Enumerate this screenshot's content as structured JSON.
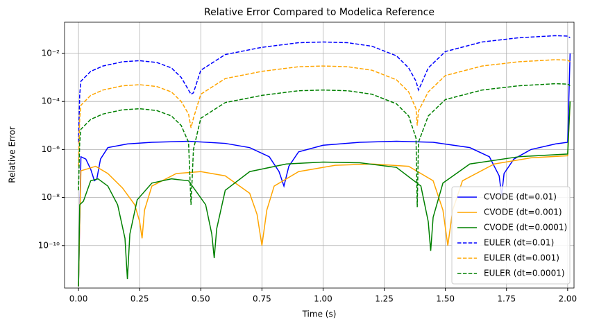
{
  "chart_data": {
    "type": "line",
    "title": "Relative Error Compared to Modelica Reference",
    "xlabel": "Time (s)",
    "ylabel": "Relative Error",
    "yscale": "log",
    "grid": true,
    "legend": "lower right",
    "xlim": [
      -0.057,
      2.026
    ],
    "ylim": [
      1.7e-12,
      0.2
    ],
    "xticks": [
      {
        "value": 0,
        "label": "0.00"
      },
      {
        "value": 0.25,
        "label": "0.25"
      },
      {
        "value": 0.5,
        "label": "0.50"
      },
      {
        "value": 0.75,
        "label": "0.75"
      },
      {
        "value": 1,
        "label": "1.00"
      },
      {
        "value": 1.25,
        "label": "1.25"
      },
      {
        "value": 1.5,
        "label": "1.50"
      },
      {
        "value": 1.75,
        "label": "1.75"
      },
      {
        "value": 2,
        "label": "2.00"
      }
    ],
    "yticks": [
      {
        "value": 1e-10,
        "label": "10⁻¹⁰"
      },
      {
        "value": 1e-08,
        "label": "10⁻⁸"
      },
      {
        "value": 1e-06,
        "label": "10⁻⁶"
      },
      {
        "value": 0.0001,
        "label": "10⁻⁴"
      },
      {
        "value": 0.01,
        "label": "10⁻²"
      }
    ],
    "series": [
      {
        "name": "CVODE (dt=0.01)",
        "color": "#0000ff",
        "dashed": false,
        "x": [
          0,
          0.005,
          0.01,
          0.03,
          0.05,
          0.065,
          0.075,
          0.09,
          0.12,
          0.2,
          0.3,
          0.45,
          0.6,
          0.7,
          0.78,
          0.82,
          0.84,
          0.86,
          0.9,
          1.0,
          1.15,
          1.3,
          1.45,
          1.6,
          1.68,
          1.72,
          1.73,
          1.74,
          1.78,
          1.85,
          1.95,
          2.0,
          2.01
        ],
        "values": [
          2e-12,
          1e-09,
          5e-07,
          4e-07,
          1.5e-07,
          5e-08,
          6e-08,
          4e-07,
          1.2e-06,
          1.7e-06,
          2e-06,
          2.2e-06,
          1.8e-06,
          1.2e-06,
          5e-07,
          1.2e-07,
          3e-08,
          2e-07,
          8e-07,
          1.5e-06,
          2e-06,
          2.2e-06,
          2e-06,
          1.2e-06,
          5e-07,
          8e-08,
          1.2e-08,
          1e-07,
          4e-07,
          1e-06,
          1.7e-06,
          2e-06,
          0.01
        ]
      },
      {
        "name": "CVODE (dt=0.001)",
        "color": "#ffa500",
        "dashed": false,
        "x": [
          0,
          0.005,
          0.01,
          0.04,
          0.07,
          0.12,
          0.18,
          0.23,
          0.25,
          0.26,
          0.27,
          0.3,
          0.4,
          0.5,
          0.6,
          0.7,
          0.73,
          0.75,
          0.77,
          0.8,
          0.9,
          1.05,
          1.2,
          1.35,
          1.45,
          1.49,
          1.51,
          1.53,
          1.57,
          1.7,
          1.85,
          2.0,
          2.01
        ],
        "values": [
          2e-12,
          1e-09,
          1.3e-07,
          1.6e-07,
          2e-07,
          1e-07,
          2.5e-08,
          5e-09,
          1e-09,
          2e-10,
          3e-09,
          3e-08,
          1e-07,
          1.2e-07,
          8e-08,
          1.5e-08,
          2e-09,
          1e-10,
          3e-09,
          3e-08,
          1.2e-07,
          2.2e-07,
          2.5e-07,
          2e-07,
          5e-08,
          3e-09,
          1e-10,
          3e-09,
          5e-08,
          2.5e-07,
          4.5e-07,
          5.5e-07,
          0.0001
        ]
      },
      {
        "name": "CVODE (dt=0.0001)",
        "color": "#008000",
        "dashed": false,
        "x": [
          0,
          0.005,
          0.02,
          0.05,
          0.08,
          0.12,
          0.16,
          0.19,
          0.2,
          0.21,
          0.24,
          0.3,
          0.38,
          0.45,
          0.52,
          0.545,
          0.555,
          0.565,
          0.6,
          0.7,
          0.85,
          1.0,
          1.15,
          1.3,
          1.4,
          1.43,
          1.44,
          1.45,
          1.49,
          1.6,
          1.8,
          2.0,
          2.01
        ],
        "values": [
          2e-12,
          5e-09,
          7e-09,
          5e-08,
          6e-08,
          3e-08,
          5e-09,
          2e-10,
          4e-12,
          3e-10,
          8e-09,
          4e-08,
          6e-08,
          5e-08,
          5e-09,
          3e-10,
          3e-11,
          5e-10,
          2e-08,
          1.2e-07,
          2.5e-07,
          3e-07,
          2.8e-07,
          1.8e-07,
          3e-08,
          1e-09,
          6e-11,
          1.5e-09,
          4e-08,
          2.5e-07,
          5e-07,
          6.5e-07,
          0.0001
        ]
      },
      {
        "name": "EULER (dt=0.01)",
        "color": "#0000ff",
        "dashed": true,
        "x": [
          0,
          0.005,
          0.01,
          0.05,
          0.1,
          0.18,
          0.25,
          0.32,
          0.38,
          0.42,
          0.45,
          0.46,
          0.47,
          0.5,
          0.6,
          0.75,
          0.9,
          1.0,
          1.1,
          1.2,
          1.3,
          1.35,
          1.38,
          1.39,
          1.4,
          1.43,
          1.5,
          1.65,
          1.8,
          1.95,
          2.0,
          2.01
        ],
        "values": [
          2e-06,
          0.0002,
          0.0007,
          0.0018,
          0.003,
          0.0045,
          0.005,
          0.0042,
          0.0025,
          0.001,
          0.0003,
          0.0002,
          0.00023,
          0.002,
          0.009,
          0.018,
          0.028,
          0.03,
          0.028,
          0.02,
          0.008,
          0.0025,
          0.0007,
          0.0003,
          0.0005,
          0.0025,
          0.012,
          0.03,
          0.045,
          0.055,
          0.053,
          0.045
        ]
      },
      {
        "name": "EULER (dt=0.001)",
        "color": "#ffa500",
        "dashed": true,
        "x": [
          0,
          0.005,
          0.01,
          0.05,
          0.1,
          0.18,
          0.25,
          0.32,
          0.38,
          0.42,
          0.45,
          0.46,
          0.47,
          0.5,
          0.6,
          0.75,
          0.9,
          1.0,
          1.1,
          1.2,
          1.3,
          1.35,
          1.38,
          1.385,
          1.39,
          1.43,
          1.5,
          1.65,
          1.8,
          1.95,
          2.0,
          2.01
        ],
        "values": [
          2e-07,
          2e-05,
          7e-05,
          0.00018,
          0.0003,
          0.00045,
          0.0005,
          0.00042,
          0.00025,
          0.0001,
          3e-05,
          8e-06,
          2e-05,
          0.0002,
          0.0009,
          0.0018,
          0.0028,
          0.003,
          0.0028,
          0.002,
          0.0008,
          0.00025,
          5e-05,
          1e-05,
          4e-05,
          0.00025,
          0.0012,
          0.003,
          0.0045,
          0.0055,
          0.0053,
          0.0045
        ]
      },
      {
        "name": "EULER (dt=0.0001)",
        "color": "#008000",
        "dashed": true,
        "x": [
          0,
          0.005,
          0.01,
          0.05,
          0.1,
          0.18,
          0.25,
          0.32,
          0.38,
          0.42,
          0.45,
          0.46,
          0.47,
          0.5,
          0.6,
          0.75,
          0.9,
          1.0,
          1.1,
          1.2,
          1.3,
          1.35,
          1.38,
          1.385,
          1.39,
          1.43,
          1.5,
          1.65,
          1.8,
          1.95,
          2.0,
          2.01
        ],
        "values": [
          2e-08,
          2e-06,
          7e-06,
          1.8e-05,
          3e-05,
          4.5e-05,
          5e-05,
          4.2e-05,
          2.5e-05,
          1e-05,
          2e-06,
          5e-09,
          1e-06,
          2e-05,
          9e-05,
          0.00018,
          0.00028,
          0.0003,
          0.00028,
          0.0002,
          8e-05,
          2.5e-05,
          3e-06,
          4e-09,
          2e-06,
          2.5e-05,
          0.00012,
          0.0003,
          0.00045,
          0.00055,
          0.00053,
          0.00045
        ]
      }
    ]
  }
}
